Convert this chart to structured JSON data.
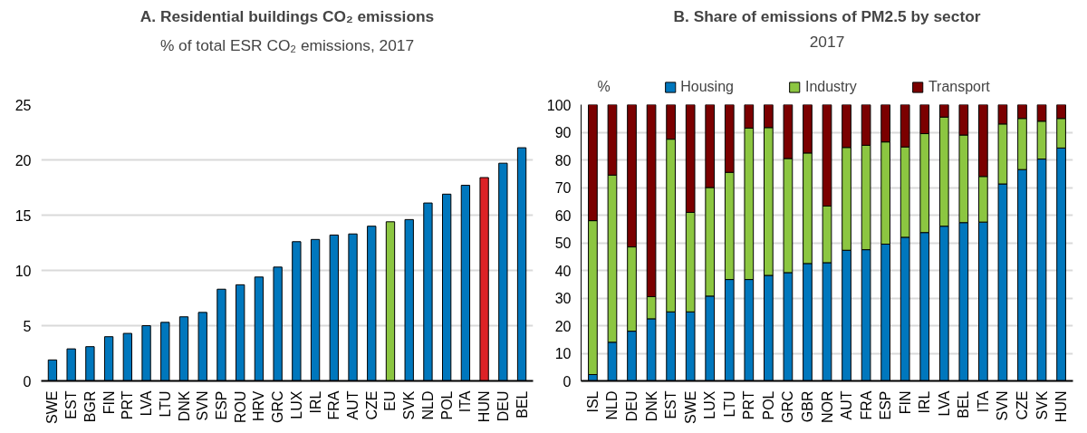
{
  "chart_data": [
    {
      "type": "bar",
      "title": "A. Residential buildings CO₂ emissions",
      "subtitle": "% of total ESR CO₂ emissions, 2017",
      "categories": [
        "SWE",
        "EST",
        "BGR",
        "FIN",
        "PRT",
        "LVA",
        "LTU",
        "DNK",
        "SVN",
        "ESP",
        "ROU",
        "HRV",
        "GRC",
        "LUX",
        "IRL",
        "FRA",
        "AUT",
        "CZE",
        "EU",
        "SVK",
        "NLD",
        "POL",
        "ITA",
        "HUN",
        "DEU",
        "BEL"
      ],
      "values": [
        1.9,
        2.9,
        3.1,
        4.0,
        4.3,
        5.0,
        5.3,
        5.8,
        6.2,
        8.3,
        8.7,
        9.4,
        10.3,
        12.6,
        12.8,
        13.2,
        13.3,
        14.0,
        14.4,
        14.6,
        16.1,
        16.9,
        17.7,
        18.4,
        19.7,
        21.1
      ],
      "colors": [
        "#0077bd",
        "#0077bd",
        "#0077bd",
        "#0077bd",
        "#0077bd",
        "#0077bd",
        "#0077bd",
        "#0077bd",
        "#0077bd",
        "#0077bd",
        "#0077bd",
        "#0077bd",
        "#0077bd",
        "#0077bd",
        "#0077bd",
        "#0077bd",
        "#0077bd",
        "#0077bd",
        "#8cc641",
        "#0077bd",
        "#0077bd",
        "#0077bd",
        "#0077bd",
        "#dd2226",
        "#0077bd",
        "#0077bd"
      ],
      "ylim": [
        0,
        25
      ],
      "yticks": [
        0,
        5,
        10,
        15,
        20,
        25
      ],
      "grid": "y"
    },
    {
      "type": "bar",
      "stacked": true,
      "title": "B. Share of emissions of PM2.5 by sector",
      "subtitle": "2017",
      "ylabel": "%",
      "categories": [
        "ISL",
        "NLD",
        "DEU",
        "DNK",
        "EST",
        "SWE",
        "LUX",
        "LTU",
        "PRT",
        "POL",
        "GRC",
        "GBR",
        "NOR",
        "AUT",
        "FRA",
        "ESP",
        "FIN",
        "IRL",
        "LVA",
        "BEL",
        "ITA",
        "SVN",
        "CZE",
        "SVK",
        "HUN"
      ],
      "series": [
        {
          "name": "Housing",
          "color": "#0077bd",
          "values": [
            2.3,
            14,
            18,
            22.5,
            25,
            25,
            30.7,
            36.7,
            36.7,
            38.2,
            39.2,
            42.5,
            42.8,
            47.3,
            47.5,
            49.5,
            52,
            53.7,
            56,
            57.3,
            57.5,
            71.3,
            76.5,
            80.3,
            84.3
          ]
        },
        {
          "name": "Industry",
          "color": "#8cc641",
          "values": [
            55.7,
            60.5,
            30.5,
            8,
            62.5,
            36,
            39.3,
            38.8,
            54.8,
            53.5,
            41.3,
            40,
            20.5,
            37.2,
            37.8,
            37,
            32.7,
            35.8,
            39.5,
            31.7,
            16.5,
            21.7,
            18.5,
            13.7,
            10.7
          ]
        },
        {
          "name": "Transport",
          "color": "#7b0000",
          "values": [
            42,
            25.5,
            51.5,
            69.5,
            12.5,
            39,
            30,
            24.5,
            8.5,
            8.3,
            19.5,
            17.5,
            36.7,
            15.5,
            14.7,
            13.5,
            15.3,
            10.5,
            4.5,
            11,
            26,
            7,
            5,
            6,
            5
          ]
        }
      ],
      "ylim": [
        0,
        100
      ],
      "yticks": [
        0,
        10,
        20,
        30,
        40,
        50,
        60,
        70,
        80,
        90,
        100
      ],
      "grid": "y",
      "legend": "top"
    }
  ]
}
